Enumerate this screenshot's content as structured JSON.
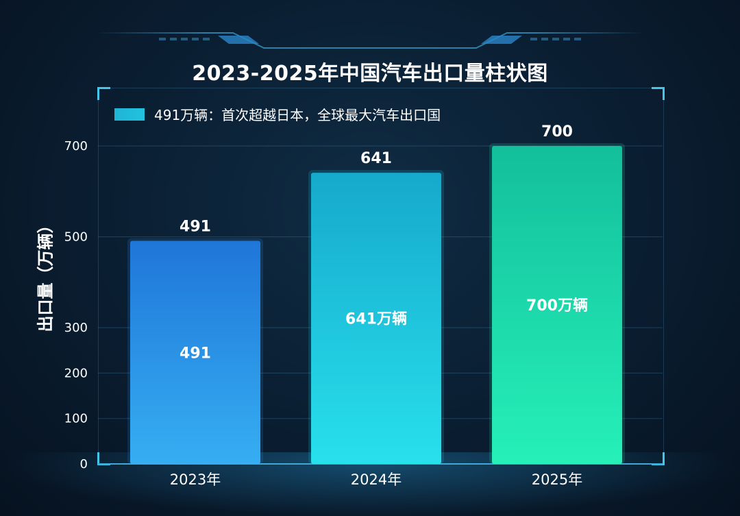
{
  "title": "2023-2025年中国汽车出口量柱状图",
  "legend": {
    "label": "491万辆：首次超越日本，全球最大汽车出口国"
  },
  "colors": {
    "bar_2023": "#2a8bea",
    "bar_2024": "#1fc7df",
    "bar_2025": "#22dba9",
    "accent": "#43c6e8"
  },
  "chart_data": {
    "type": "bar",
    "title": "2023-2025年中国汽车出口量柱状图",
    "xlabel": "",
    "ylabel": "出口量（万辆）",
    "categories": [
      "2023年",
      "2024年",
      "2025年"
    ],
    "values": [
      491,
      641,
      700
    ],
    "value_labels_top": [
      "491",
      "641",
      "700"
    ],
    "value_labels_inside": [
      "491",
      "641万辆",
      "700万辆"
    ],
    "yticks": [
      0,
      100,
      200,
      300,
      500,
      700
    ],
    "ylim": [
      0,
      700
    ],
    "grid": true,
    "legend_position": "top-left"
  }
}
